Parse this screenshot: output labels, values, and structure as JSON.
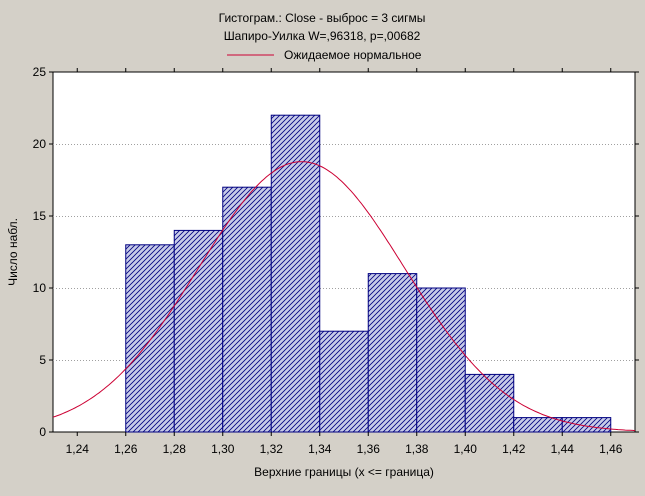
{
  "chart_data": {
    "type": "bar",
    "title": "Гистограм.: Close - выброс = 3 сигмы",
    "subtitle": "Шапиро-Уилка W=,96318, p=,00682",
    "legend": {
      "label": "Ожидаемое нормальное",
      "placement": "top-center"
    },
    "xlabel": "Верхние границы (x <= граница)",
    "ylabel": "Число набл.",
    "xlim": [
      1.23,
      1.47
    ],
    "ylim": [
      0,
      25
    ],
    "x_ticks": [
      "1,24",
      "1,26",
      "1,28",
      "1,30",
      "1,32",
      "1,34",
      "1,36",
      "1,38",
      "1,40",
      "1,42",
      "1,44",
      "1,46"
    ],
    "x_tick_values": [
      1.24,
      1.26,
      1.28,
      1.3,
      1.32,
      1.34,
      1.36,
      1.38,
      1.4,
      1.42,
      1.44,
      1.46
    ],
    "y_ticks": [
      "0",
      "5",
      "10",
      "15",
      "20",
      "25"
    ],
    "y_tick_values": [
      0,
      5,
      10,
      15,
      20,
      25
    ],
    "grid": true,
    "bins": [
      {
        "upper": 1.28,
        "count": 13
      },
      {
        "upper": 1.3,
        "count": 14
      },
      {
        "upper": 1.32,
        "count": 17
      },
      {
        "upper": 1.34,
        "count": 22
      },
      {
        "upper": 1.36,
        "count": 7
      },
      {
        "upper": 1.38,
        "count": 11
      },
      {
        "upper": 1.4,
        "count": 10
      },
      {
        "upper": 1.42,
        "count": 4
      },
      {
        "upper": 1.44,
        "count": 1
      },
      {
        "upper": 1.46,
        "count": 1
      }
    ],
    "bin_width": 0.02,
    "normal_curve": {
      "mean": 1.3325,
      "sd": 0.0425,
      "n": 100
    },
    "colors": {
      "background": "#d4d0c8",
      "plot_area": "#ffffff",
      "bar_fill": "#c8cce8",
      "bar_stroke": "#000080",
      "hatch": "#000080",
      "curve": "#cc0033",
      "grid": "#a0a0a0"
    }
  }
}
